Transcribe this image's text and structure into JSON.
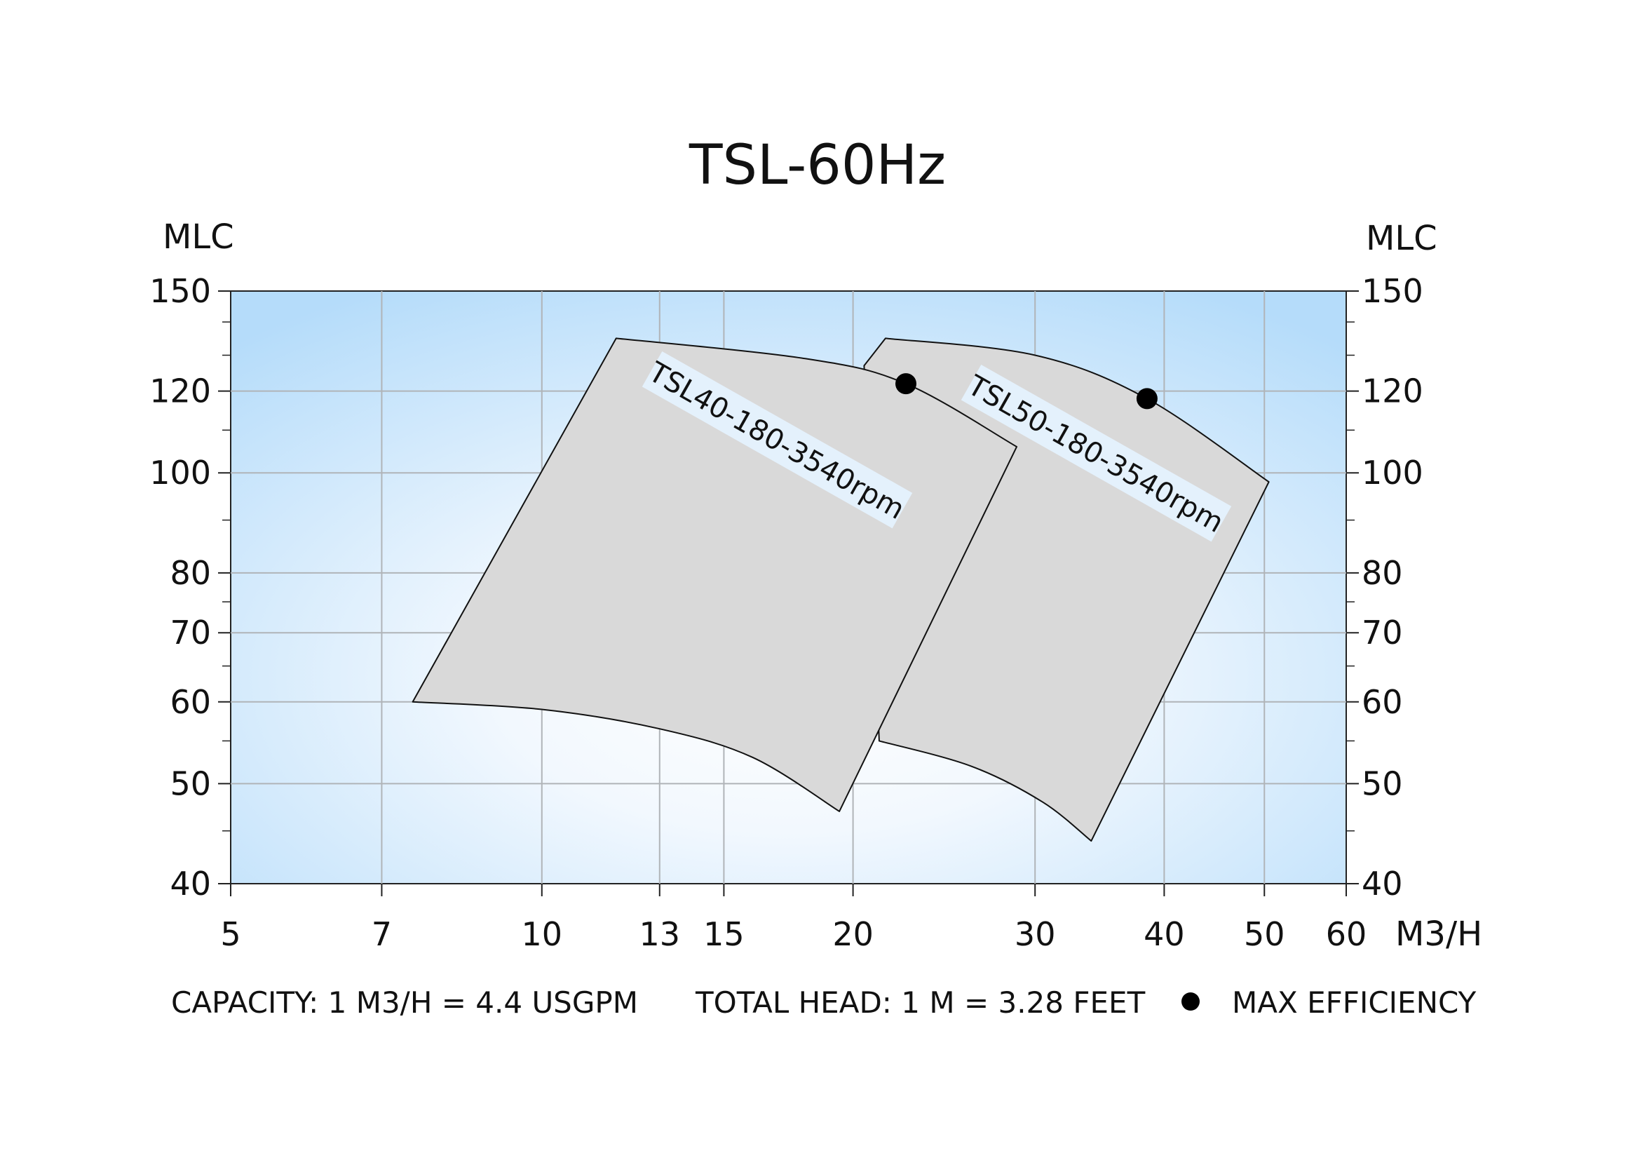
{
  "chart_data": {
    "type": "area",
    "title": "TSL-60Hz",
    "x_unit": "M3/H",
    "y_unit_left": "MLC",
    "y_unit_right": "MLC",
    "x_scale": "log",
    "y_scale": "log",
    "xlim": [
      5,
      60
    ],
    "ylim": [
      40,
      150
    ],
    "x_ticks": [
      5,
      7,
      10,
      13,
      15,
      20,
      30,
      40,
      50,
      60
    ],
    "x_tick_labels": [
      "5",
      "7",
      "10",
      "13",
      "15",
      "20",
      "30",
      "40",
      "50",
      "60"
    ],
    "y_ticks": [
      40,
      50,
      60,
      70,
      80,
      100,
      120,
      150
    ],
    "y_tick_labels": [
      "40",
      "50",
      "60",
      "70",
      "80",
      "100",
      "120",
      "150"
    ],
    "grid": true,
    "series": [
      {
        "name": "TSL40-180-3540rpm",
        "top_curve": [
          [
            11.8,
            135
          ],
          [
            18.0,
            129
          ],
          [
            22.5,
            122
          ],
          [
            28.8,
            106
          ]
        ],
        "right_edge": [
          [
            28.8,
            106
          ],
          [
            19.4,
            47
          ]
        ],
        "bottom_curve": [
          [
            7.5,
            60
          ],
          [
            10.0,
            59
          ],
          [
            13.0,
            56.5
          ],
          [
            16.0,
            53
          ],
          [
            19.4,
            47
          ]
        ],
        "left_edge": [
          [
            7.5,
            60
          ],
          [
            11.8,
            135
          ]
        ],
        "max_efficiency": [
          22.5,
          122
        ]
      },
      {
        "name": "TSL50-180-3540rpm",
        "top_curve": [
          [
            21.5,
            135
          ],
          [
            30.0,
            130
          ],
          [
            38.5,
            118
          ],
          [
            50.5,
            98
          ]
        ],
        "right_edge": [
          [
            50.5,
            98
          ],
          [
            34.0,
            44
          ]
        ],
        "bottom_curve": [
          [
            21.2,
            55
          ],
          [
            26.0,
            52
          ],
          [
            30.5,
            48
          ],
          [
            34.0,
            44
          ]
        ],
        "left_edge": [
          [
            20.5,
            127
          ],
          [
            21.5,
            135
          ]
        ],
        "max_efficiency": [
          38.5,
          118
        ]
      }
    ]
  },
  "footer": {
    "capacity": "CAPACITY: 1 M3/H = 4.4 USGPM",
    "total_head": "TOTAL HEAD: 1 M = 3.28 FEET",
    "max_efficiency": "MAX EFFICIENCY"
  },
  "colors": {
    "panel_edge": "#b5dcfa",
    "panel_center": "#ffffff",
    "envelope_fill": "#d9d9d9",
    "grid": "#b0b4b8",
    "label_box": "#e4f1fc"
  }
}
